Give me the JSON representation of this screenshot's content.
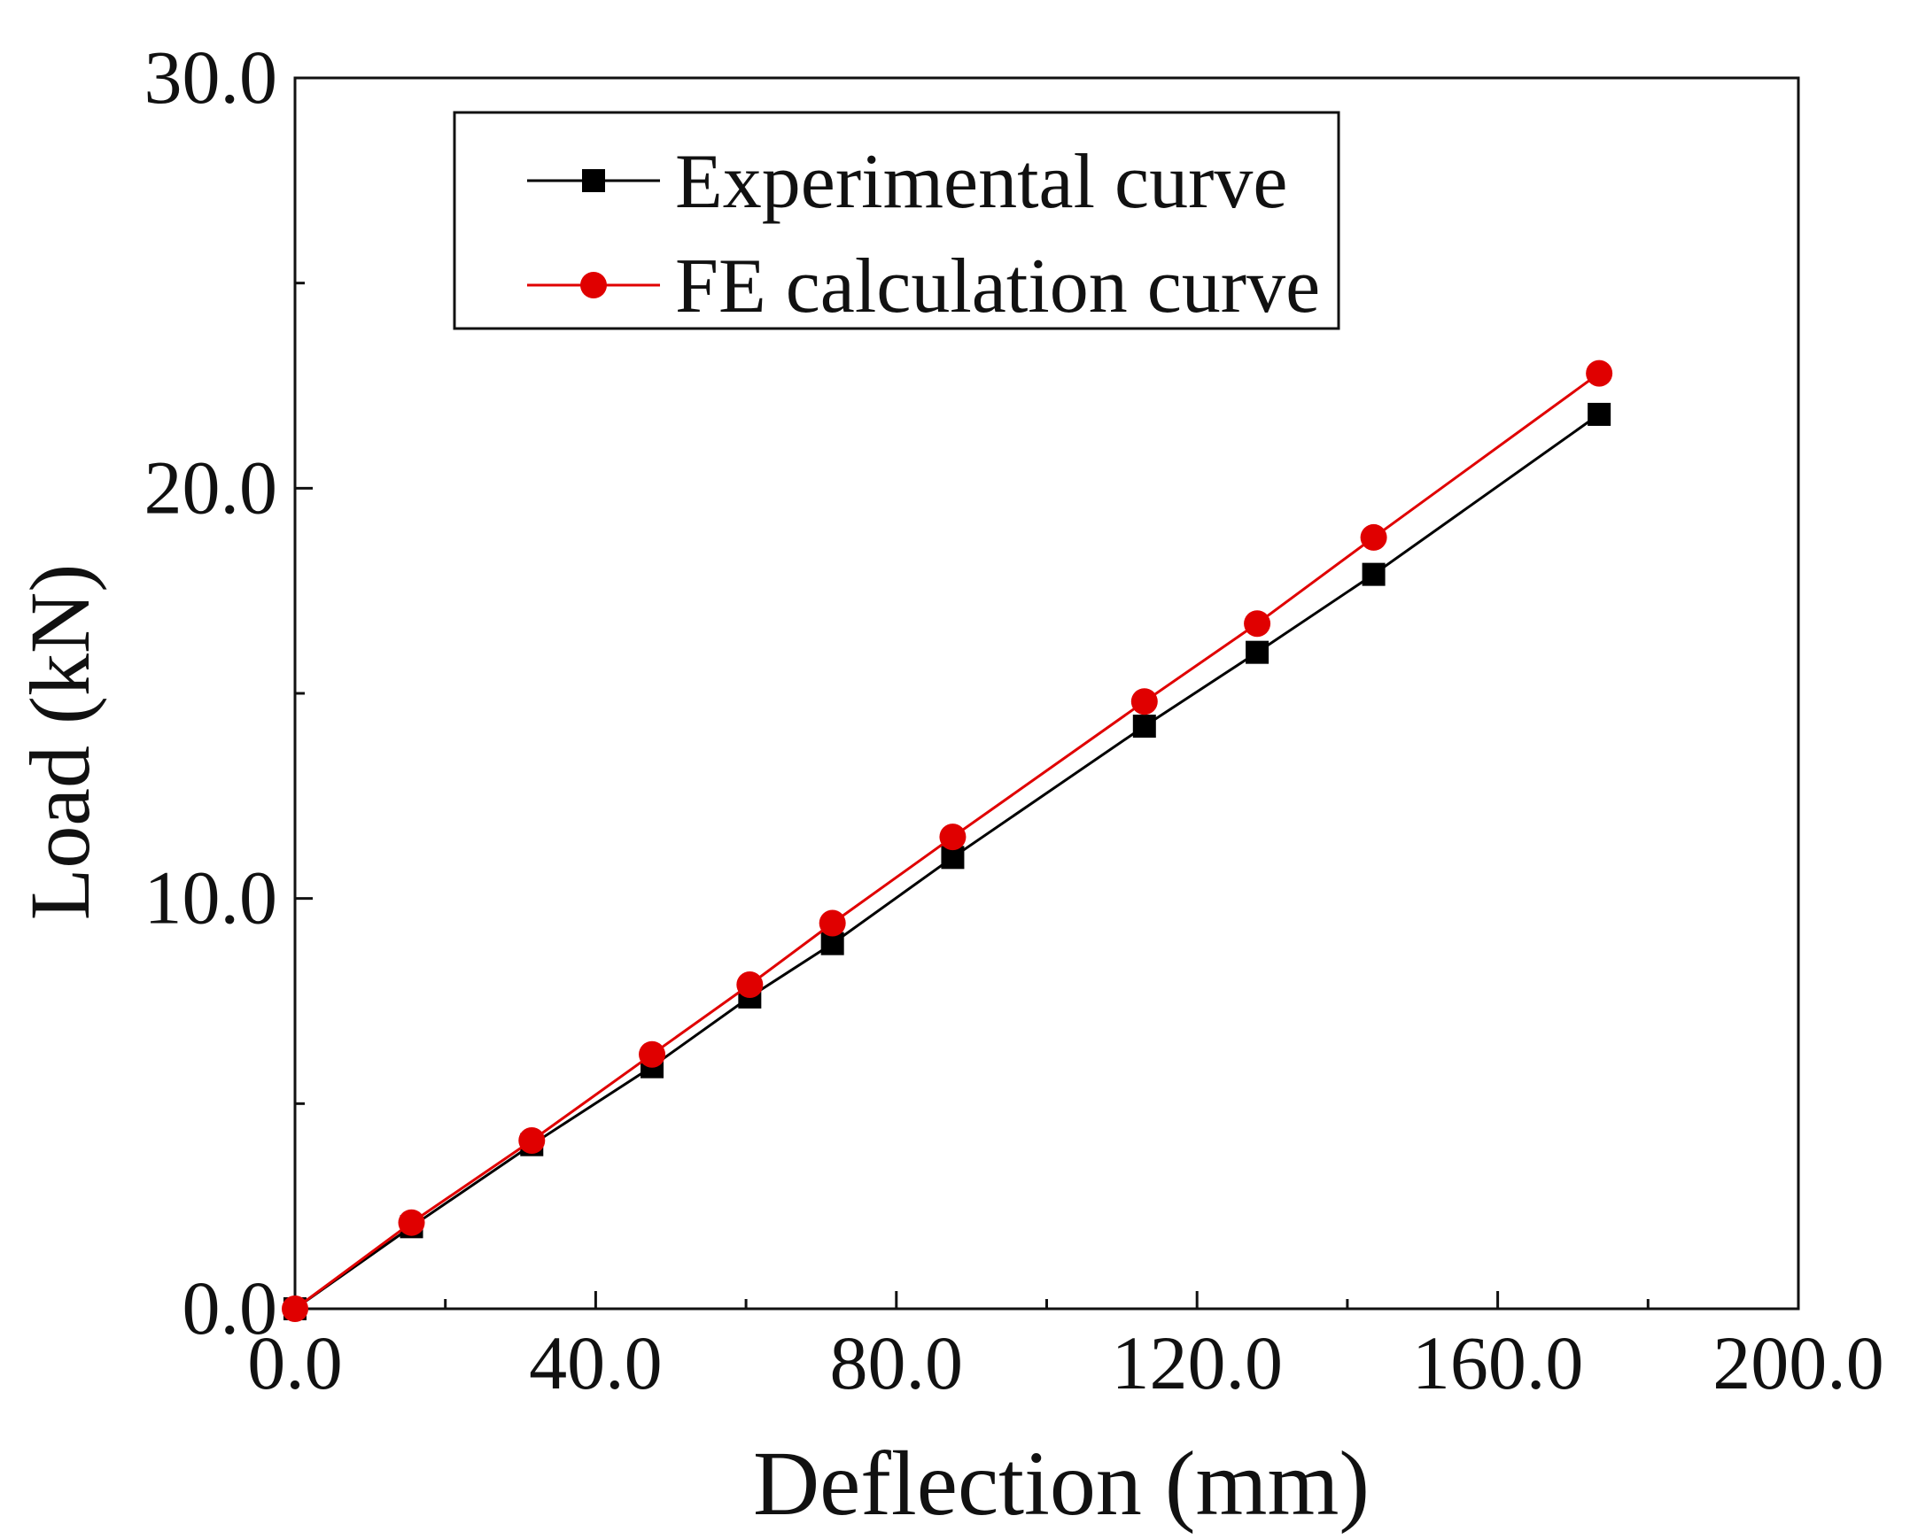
{
  "chart_data": {
    "type": "line",
    "title": "",
    "xlabel": "Deflection (mm)",
    "ylabel": "Load (kN)",
    "xlim": [
      0,
      200
    ],
    "ylim": [
      0,
      30
    ],
    "x_ticks": [
      0,
      40,
      80,
      120,
      160,
      200
    ],
    "x_tick_labels": [
      "0.0",
      "40.0",
      "80.0",
      "120.0",
      "160.0",
      "200.0"
    ],
    "x_minor_ticks": [
      20,
      60,
      100,
      140,
      180
    ],
    "y_ticks": [
      0,
      10,
      20,
      30
    ],
    "y_tick_labels": [
      "0.0",
      "10.0",
      "20.0",
      "30.0"
    ],
    "y_minor_ticks": [
      5,
      15,
      25
    ],
    "grid": false,
    "legend_position": "top-left",
    "series": [
      {
        "name": "Experimental curve",
        "color": "#000000",
        "marker": "square",
        "x": [
          0,
          15.5,
          31.5,
          47.5,
          60.5,
          71.5,
          87.5,
          113,
          128,
          143.5,
          173.5
        ],
        "y": [
          0,
          2.0,
          4.0,
          5.9,
          7.6,
          8.9,
          11.0,
          14.2,
          16.0,
          17.9,
          21.8
        ]
      },
      {
        "name": "FE calculation curve",
        "color": "#e00000",
        "marker": "circle",
        "x": [
          0,
          15.5,
          31.5,
          47.5,
          60.5,
          71.5,
          87.5,
          113,
          128,
          143.5,
          173.5
        ],
        "y": [
          0,
          2.1,
          4.1,
          6.2,
          7.9,
          9.4,
          11.5,
          14.8,
          16.7,
          18.8,
          22.8
        ]
      }
    ]
  }
}
